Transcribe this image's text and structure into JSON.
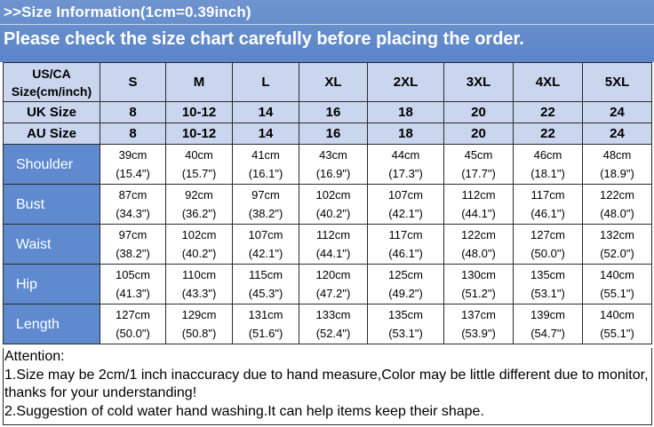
{
  "header": {
    "title": ">>Size Information(1cm=0.39inch)",
    "subtitle": "Please check the size chart carefully before placing the order."
  },
  "table": {
    "corner_label_line1": "US/CA",
    "corner_label_line2": "Size(cm/inch)",
    "us_sizes": [
      "S",
      "M",
      "L",
      "XL",
      "2XL",
      "3XL",
      "4XL",
      "5XL"
    ],
    "uk_label": "UK Size",
    "uk_sizes": [
      "8",
      "10-12",
      "14",
      "16",
      "18",
      "20",
      "22",
      "24"
    ],
    "au_label": "AU Size",
    "au_sizes": [
      "8",
      "10-12",
      "14",
      "16",
      "18",
      "20",
      "22",
      "24"
    ],
    "rows": [
      {
        "label": "Shoulder",
        "cm": [
          "39cm",
          "40cm",
          "41cm",
          "43cm",
          "44cm",
          "45cm",
          "46cm",
          "48cm"
        ],
        "inch": [
          "(15.4\")",
          "(15.7\")",
          "(16.1\")",
          "(16.9\")",
          "(17.3\")",
          "(17.7\")",
          "(18.1\")",
          "(18.9\")"
        ]
      },
      {
        "label": "Bust",
        "cm": [
          "87cm",
          "92cm",
          "97cm",
          "102cm",
          "107cm",
          "112cm",
          "117cm",
          "122cm"
        ],
        "inch": [
          "(34.3\")",
          "(36.2\")",
          "(38.2\")",
          "(40.2\")",
          "(42.1\")",
          "(44.1\")",
          "(46.1\")",
          "(48.0\")"
        ]
      },
      {
        "label": "Waist",
        "cm": [
          "97cm",
          "102cm",
          "107cm",
          "112cm",
          "117cm",
          "122cm",
          "127cm",
          "132cm"
        ],
        "inch": [
          "(38.2\")",
          "(40.2\")",
          "(42.1\")",
          "(44.1\")",
          "(46.1\")",
          "(48.0\")",
          "(50.0\")",
          "(52.0\")"
        ]
      },
      {
        "label": "Hip",
        "cm": [
          "105cm",
          "110cm",
          "115cm",
          "120cm",
          "125cm",
          "130cm",
          "135cm",
          "140cm"
        ],
        "inch": [
          "(41.3\")",
          "(43.3\")",
          "(45.3\")",
          "(47.2\")",
          "(49.2\")",
          "(51.2\")",
          "(53.1\")",
          "(55.1\")"
        ]
      },
      {
        "label": "Length",
        "cm": [
          "127cm",
          "129cm",
          "131cm",
          "133cm",
          "135cm",
          "137cm",
          "139cm",
          "140cm"
        ],
        "inch": [
          "(50.0\")",
          "(50.8\")",
          "(51.6\")",
          "(52.4\")",
          "(53.1\")",
          "(53.9\")",
          "(54.7\")",
          "(55.1\")"
        ]
      }
    ]
  },
  "notes": {
    "heading": "Attention:",
    "line1": "1.Size may be 2cm/1 inch inaccuracy due to hand measure,Color may be little different due to monitor,",
    "line2": "thanks for your understanding!",
    "line3": "2.Suggestion of cold water hand washing.It can help items keep their shape."
  },
  "colors": {
    "title_bar": "#5b85c8",
    "header_cells": "#c9d6ee",
    "row_label_cells": "#5f8ad0"
  }
}
